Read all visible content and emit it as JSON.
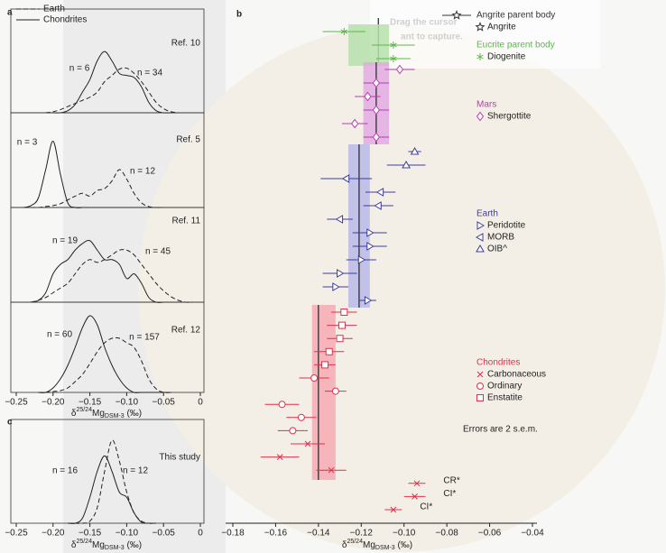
{
  "chart_data": [
    {
      "type": "density",
      "label": "a",
      "annotations": [
        "Ref. 10",
        "n = 6",
        "n = 34"
      ],
      "legend": "upper left",
      "x": [
        -0.21,
        -0.2,
        -0.19,
        -0.18,
        -0.17,
        -0.16,
        -0.15,
        -0.14,
        -0.13,
        -0.12,
        -0.11,
        -0.1,
        -0.09,
        -0.08,
        -0.07,
        -0.06,
        -0.05,
        -0.04,
        -0.03
      ],
      "series": [
        {
          "name": "Earth",
          "style": "dashed",
          "color": "#222222",
          "values": [
            0,
            0.01,
            0.03,
            0.06,
            0.09,
            0.12,
            0.15,
            0.2,
            0.3,
            0.36,
            0.42,
            0.43,
            0.38,
            0.3,
            0.2,
            0.1,
            0.04,
            0.01,
            0
          ]
        },
        {
          "name": "Chondrites",
          "style": "solid",
          "color": "#222222",
          "values": [
            0,
            0,
            0,
            0.02,
            0.08,
            0.2,
            0.32,
            0.5,
            0.59,
            0.5,
            0.38,
            0.36,
            0.34,
            0.25,
            0.1,
            0.02,
            0,
            0,
            0
          ]
        }
      ],
      "xlim": [
        -0.25,
        0
      ],
      "ylim": [
        0,
        1
      ]
    },
    {
      "type": "density",
      "annotations": [
        "Ref. 5",
        "n = 3",
        "n = 12"
      ],
      "x": [
        -0.24,
        -0.23,
        -0.22,
        -0.21,
        -0.2,
        -0.19,
        -0.18,
        -0.17,
        -0.16,
        -0.15,
        -0.14,
        -0.13,
        -0.12,
        -0.11,
        -0.1,
        -0.09,
        -0.08,
        -0.07,
        -0.06,
        -0.05
      ],
      "series": [
        {
          "style": "dashed",
          "color": "#222222",
          "values": [
            0,
            0,
            0,
            0.01,
            0.02,
            0.04,
            0.08,
            0.12,
            0.15,
            0.12,
            0.18,
            0.2,
            0.28,
            0.4,
            0.3,
            0.15,
            0.05,
            0.01,
            0,
            0
          ]
        },
        {
          "style": "solid",
          "color": "#222222",
          "values": [
            0,
            0.02,
            0.1,
            0.4,
            0.7,
            0.35,
            0.05,
            0,
            0,
            0,
            0,
            0,
            0,
            0,
            0,
            0,
            0,
            0,
            0,
            0
          ]
        }
      ],
      "xlim": [
        -0.25,
        0
      ],
      "ylim": [
        0,
        1
      ]
    },
    {
      "type": "density",
      "annotations": [
        "Ref. 11",
        "n = 19",
        "n = 45"
      ],
      "x": [
        -0.23,
        -0.22,
        -0.21,
        -0.2,
        -0.19,
        -0.18,
        -0.17,
        -0.16,
        -0.15,
        -0.14,
        -0.13,
        -0.12,
        -0.11,
        -0.1,
        -0.09,
        -0.08,
        -0.07,
        -0.06,
        -0.05,
        -0.04,
        -0.03,
        -0.02,
        -0.01
      ],
      "series": [
        {
          "style": "dashed",
          "color": "#222222",
          "values": [
            0,
            0.02,
            0.05,
            0.1,
            0.15,
            0.2,
            0.3,
            0.4,
            0.45,
            0.42,
            0.45,
            0.5,
            0.55,
            0.55,
            0.5,
            0.4,
            0.3,
            0.2,
            0.12,
            0.06,
            0.02,
            0,
            0
          ]
        },
        {
          "style": "solid",
          "color": "#222222",
          "values": [
            0,
            0.02,
            0.1,
            0.3,
            0.4,
            0.45,
            0.55,
            0.62,
            0.65,
            0.55,
            0.45,
            0.45,
            0.4,
            0.25,
            0.3,
            0.2,
            0.05,
            0,
            0,
            0,
            0,
            0,
            0
          ]
        }
      ],
      "xlim": [
        -0.25,
        0
      ],
      "ylim": [
        0,
        1
      ]
    },
    {
      "type": "density",
      "annotations": [
        "Ref. 12",
        "n = 60",
        "n = 157"
      ],
      "x": [
        -0.22,
        -0.21,
        -0.2,
        -0.19,
        -0.18,
        -0.17,
        -0.16,
        -0.15,
        -0.14,
        -0.13,
        -0.12,
        -0.11,
        -0.1,
        -0.09,
        -0.08,
        -0.07,
        -0.06,
        -0.05,
        -0.04
      ],
      "series": [
        {
          "style": "dashed",
          "color": "#222222",
          "values": [
            0,
            0,
            0.01,
            0.02,
            0.05,
            0.12,
            0.2,
            0.32,
            0.45,
            0.55,
            0.6,
            0.6,
            0.55,
            0.5,
            0.35,
            0.15,
            0.04,
            0,
            0
          ]
        },
        {
          "style": "solid",
          "color": "#222222",
          "values": [
            0,
            0,
            0.05,
            0.15,
            0.3,
            0.5,
            0.72,
            0.85,
            0.75,
            0.5,
            0.3,
            0.15,
            0.05,
            0,
            0,
            0,
            0,
            0,
            0
          ]
        }
      ],
      "xlim": [
        -0.25,
        0
      ],
      "ylim": [
        0,
        1
      ],
      "xticks": [
        {
          "value": -0.25,
          "label": "−0.25"
        },
        {
          "value": -0.2,
          "label": "−0.20"
        },
        {
          "value": -0.15,
          "label": "−0.15"
        },
        {
          "value": -0.1,
          "label": "−0.10"
        },
        {
          "value": -0.05,
          "label": "−0.05"
        },
        0
      ],
      "x_label": {
        "prefix": "δ",
        "sup": "25/24",
        "main": "Mg",
        "sub": "DSM-3",
        "unit": " (‰)"
      }
    },
    {
      "type": "density",
      "label": "c",
      "annotations": [
        "This study",
        "n = 16",
        "n = 12"
      ],
      "x": [
        -0.18,
        -0.17,
        -0.16,
        -0.15,
        -0.14,
        -0.13,
        -0.12,
        -0.11,
        -0.1,
        -0.09,
        -0.08,
        -0.07,
        -0.06
      ],
      "series": [
        {
          "style": "dashed",
          "color": "#222222",
          "values": [
            0,
            0,
            0,
            0.02,
            0.15,
            0.5,
            0.8,
            0.6,
            0.3,
            0.1,
            0.02,
            0,
            0
          ]
        },
        {
          "style": "solid",
          "color": "#222222",
          "values": [
            0,
            0,
            0.05,
            0.25,
            0.5,
            0.65,
            0.5,
            0.3,
            0.25,
            0.1,
            0.01,
            0,
            0
          ]
        }
      ],
      "xlim": [
        -0.25,
        0
      ],
      "ylim": [
        0,
        1
      ],
      "xticks": [
        {
          "value": -0.25,
          "label": "−0.25"
        },
        {
          "value": -0.2,
          "label": "−0.20"
        },
        {
          "value": -0.15,
          "label": "−0.15"
        },
        {
          "value": -0.1,
          "label": "−0.10"
        },
        {
          "value": -0.05,
          "label": "−0.05"
        },
        0
      ],
      "x_label": {
        "prefix": "δ",
        "sup": "25/24",
        "main": "Mg",
        "sub": "DSM-3",
        "unit": " (‰)"
      }
    },
    {
      "type": "errorbar",
      "label": "b",
      "xlim": [
        -0.18,
        -0.04
      ],
      "xticks": [
        {
          "value": -0.18,
          "label": "−0.18"
        },
        {
          "value": -0.16,
          "label": "−0.16"
        },
        {
          "value": -0.14,
          "label": "−0.14"
        },
        {
          "value": -0.12,
          "label": "−0.12"
        },
        {
          "value": -0.1,
          "label": "−0.10"
        },
        {
          "value": -0.08,
          "label": "−0.08"
        },
        {
          "value": -0.06,
          "label": "−0.06"
        },
        {
          "value": -0.04,
          "label": "−0.04"
        }
      ],
      "x_label": {
        "prefix": "δ",
        "sup": "25/24",
        "main": "Mg",
        "sub": "DSM-3",
        "unit": " (‰)"
      },
      "note": "Errors are 2 s.e.m.",
      "overlay_text": [
        "Drag the cursor",
        "ant to capture."
      ],
      "groups": [
        {
          "name": "Angrite parent body",
          "color": "#333333",
          "mean": -0.112
        },
        {
          "name": "Eucrite parent body",
          "color": "#58b947",
          "band": [
            -0.126,
            -0.107
          ],
          "band_color": "#b6e0ac"
        },
        {
          "name": "Mars",
          "color": "#b43cb4",
          "mean": -0.113,
          "band": [
            -0.119,
            -0.107
          ],
          "band_color": "#e2aae2"
        },
        {
          "name": "Earth",
          "color": "#3c3ca0",
          "mean": -0.121,
          "band": [
            -0.126,
            -0.116
          ],
          "band_color": "#b8b8e6"
        },
        {
          "name": "Chondrites",
          "color": "#e0304a",
          "mean": -0.14,
          "band": [
            -0.143,
            -0.132
          ],
          "band_color": "#f5aab2"
        }
      ],
      "series": [
        {
          "name": "Angrite",
          "group": 0,
          "marker": "star",
          "color": "#333333",
          "values": [],
          "errors": []
        },
        {
          "name": "Diogenite",
          "group": 1,
          "marker": "asterisk",
          "color": "#58b947",
          "values": [
            -0.128,
            -0.105,
            -0.105
          ],
          "errors": [
            0.01,
            0.01,
            0.008
          ]
        },
        {
          "name": "Shergottite",
          "group": 2,
          "marker": "diamond",
          "color": "#b43cb4",
          "values": [
            -0.102,
            -0.113,
            -0.117,
            -0.113,
            -0.123,
            -0.113
          ],
          "errors": [
            0.007,
            0.006,
            0.006,
            0.006,
            0.006,
            0.006
          ]
        },
        {
          "name": "OIB^",
          "group": 3,
          "marker": "tri-up",
          "color": "#3c3ca0",
          "values": [
            -0.095,
            -0.099
          ],
          "errors": [
            0.003,
            0.009
          ]
        },
        {
          "name": "MORB",
          "group": 3,
          "marker": "tri-left",
          "color": "#3c3ca0",
          "values": [
            -0.127,
            -0.111,
            -0.112,
            -0.13
          ],
          "errors": [
            0.012,
            0.007,
            0.007,
            0.006
          ]
        },
        {
          "name": "Peridotite",
          "group": 3,
          "marker": "tri-right",
          "color": "#3c3ca0",
          "values": [
            -0.116,
            -0.116,
            -0.12,
            -0.13,
            -0.132,
            -0.117
          ],
          "errors": [
            0.008,
            0.008,
            0.007,
            0.008,
            0.006,
            0.004
          ]
        },
        {
          "name": "Enstatite",
          "group": 4,
          "marker": "square",
          "color": "#e0304a",
          "values": [
            -0.128,
            -0.129,
            -0.13,
            -0.135,
            -0.137
          ],
          "errors": [
            0.006,
            0.007,
            0.006,
            0.007,
            0.005
          ]
        },
        {
          "name": "Ordinary",
          "group": 4,
          "marker": "circle",
          "color": "#e0304a",
          "values": [
            -0.142,
            -0.132,
            -0.157,
            -0.148,
            -0.152
          ],
          "errors": [
            0.007,
            0.005,
            0.008,
            0.007,
            0.007
          ]
        },
        {
          "name": "Carbonaceous",
          "group": 4,
          "marker": "x",
          "color": "#e0304a",
          "values": [
            -0.145,
            -0.158,
            -0.134,
            -0.094,
            -0.095,
            -0.105
          ],
          "errors": [
            0.008,
            0.009,
            0.007,
            0.004,
            0.005,
            0.004
          ],
          "point_labels": [
            null,
            null,
            null,
            "CR*",
            "CI*",
            "CI*"
          ]
        }
      ]
    }
  ]
}
